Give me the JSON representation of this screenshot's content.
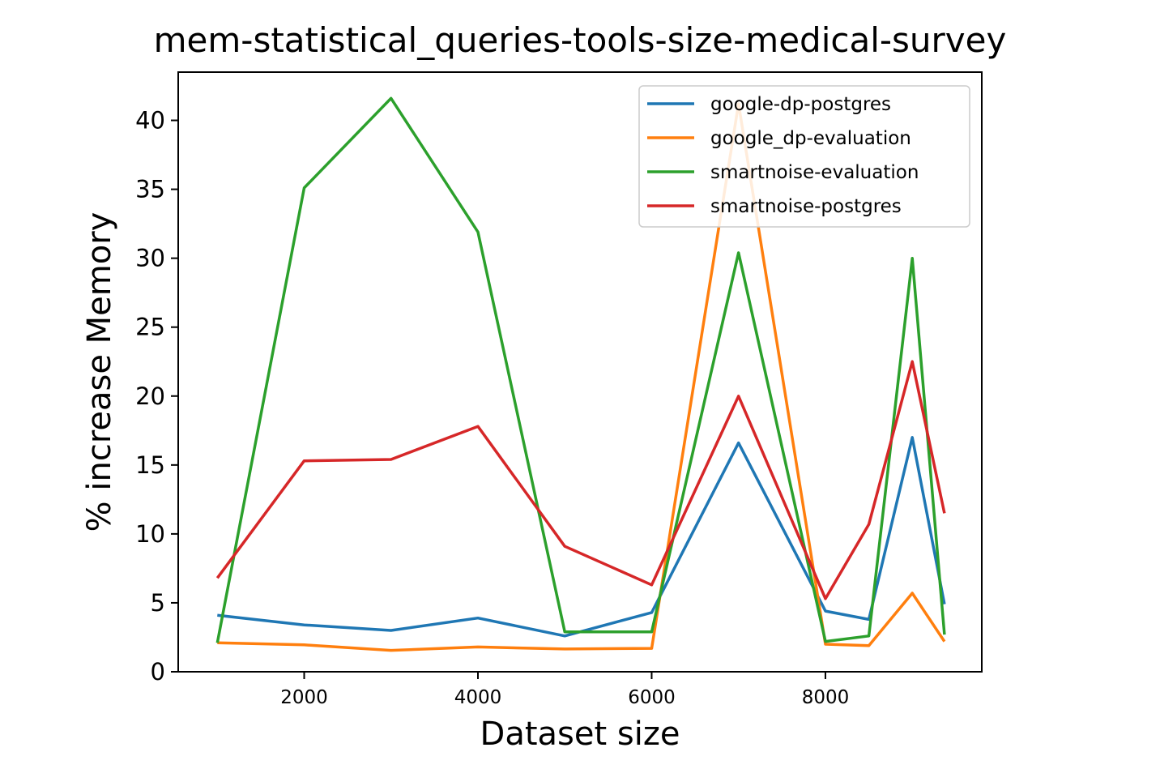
{
  "chart_data": {
    "type": "line",
    "title": "mem-statistical_queries-tools-size-medical-survey",
    "xlabel": "Dataset size",
    "ylabel": "% increase Memory",
    "xlim": [
      550,
      9800
    ],
    "ylim": [
      0,
      43.5
    ],
    "xticks": [
      2000,
      4000,
      6000,
      8000
    ],
    "yticks": [
      0,
      5,
      10,
      15,
      20,
      25,
      30,
      35,
      40
    ],
    "grid": false,
    "legend_position": "top-right",
    "x": [
      1000,
      2000,
      3000,
      4000,
      5000,
      6000,
      7000,
      8000,
      8500,
      9000,
      9370
    ],
    "series": [
      {
        "name": "google-dp-postgres",
        "color": "#1f77b4",
        "values": [
          4.1,
          3.4,
          3.0,
          3.9,
          2.6,
          4.3,
          16.6,
          4.4,
          3.8,
          17.0,
          4.9
        ]
      },
      {
        "name": "google_dp-evaluation",
        "color": "#ff7f0e",
        "values": [
          2.1,
          1.95,
          1.55,
          1.8,
          1.65,
          1.7,
          41.2,
          2.0,
          1.9,
          5.7,
          2.2
        ]
      },
      {
        "name": "smartnoise-evaluation",
        "color": "#2ca02c",
        "values": [
          2.1,
          35.1,
          41.6,
          31.9,
          2.9,
          2.9,
          30.4,
          2.2,
          2.6,
          30.0,
          2.7
        ]
      },
      {
        "name": "smartnoise-postgres",
        "color": "#d62728",
        "values": [
          6.8,
          15.3,
          15.4,
          17.8,
          9.1,
          6.3,
          20.0,
          5.3,
          10.7,
          22.5,
          11.5
        ]
      }
    ]
  }
}
